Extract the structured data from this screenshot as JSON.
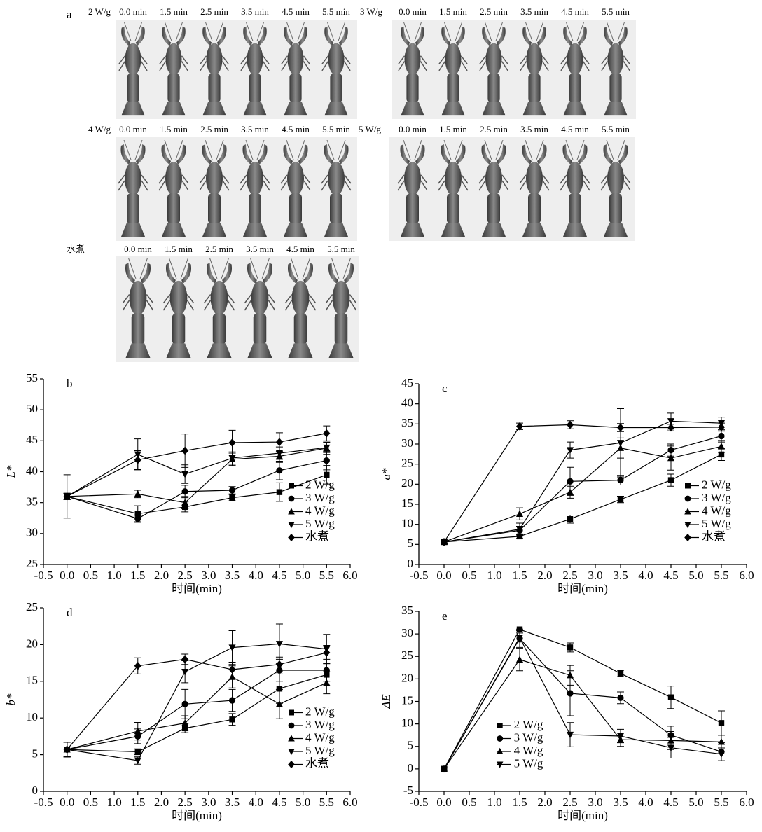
{
  "photo_panel": {
    "label": "a",
    "groups": [
      {
        "name": "2 W/g",
        "times": [
          "0.0 min",
          "1.5 min",
          "2.5 min",
          "3.5 min",
          "4.5 min",
          "5.5 min"
        ]
      },
      {
        "name": "3 W/g",
        "times": [
          "0.0 min",
          "1.5 min",
          "2.5 min",
          "3.5 min",
          "4.5 min",
          "5.5 min"
        ]
      },
      {
        "name": "4 W/g",
        "times": [
          "0.0 min",
          "1.5 min",
          "2.5 min",
          "3.5 min",
          "4.5 min",
          "5.5 min"
        ]
      },
      {
        "name": "5 W/g",
        "times": [
          "0.0 min",
          "1.5 min",
          "2.5 min",
          "3.5 min",
          "4.5 min",
          "5.5 min"
        ]
      },
      {
        "name": "水煮",
        "times": [
          "0.0 min",
          "1.5 min",
          "2.5 min",
          "3.5 min",
          "4.5 min",
          "5.5 min"
        ]
      }
    ]
  },
  "chart_data": [
    {
      "type": "line",
      "label": "b",
      "ylabel": "L*",
      "xlabel": "时间(min)",
      "legend": "lower right",
      "x": [
        0,
        1.5,
        2.5,
        3.5,
        4.5,
        5.5
      ],
      "xlim": [
        -0.5,
        6.0
      ],
      "xticks": [
        -0.5,
        {
          "value": 0,
          "label": "0.0"
        },
        0.5,
        {
          "value": 1,
          "label": "1.0"
        },
        1.5,
        {
          "value": 2,
          "label": "2.0"
        },
        2.5,
        {
          "value": 3,
          "label": "3.0"
        },
        3.5,
        {
          "value": 4,
          "label": "4.0"
        },
        4.5,
        {
          "value": 5,
          "label": "5.0"
        },
        5.5,
        {
          "value": 6,
          "label": "6.0"
        }
      ],
      "ylim": [
        25,
        55
      ],
      "yticks": [
        25,
        30,
        35,
        40,
        45,
        50,
        55
      ],
      "series": [
        {
          "name": "2 W/g",
          "marker": "square",
          "color": "#000",
          "values": [
            36,
            33.2,
            34.3,
            35.8,
            36.7,
            39.5
          ],
          "errors": [
            0.5,
            1.3,
            0.8,
            0.5,
            1.5,
            1.5
          ]
        },
        {
          "name": "3 W/g",
          "marker": "circle",
          "color": "#000",
          "values": [
            36,
            32.4,
            36.8,
            37.0,
            40.2,
            41.8
          ],
          "errors": [
            0.5,
            0.6,
            1.0,
            0.6,
            1.5,
            1.5
          ]
        },
        {
          "name": "4 W/g",
          "marker": "triangle",
          "color": "#000",
          "values": [
            36,
            36.4,
            35.0,
            42.0,
            42.5,
            43.8
          ],
          "errors": [
            0.5,
            0.6,
            1.0,
            1.0,
            1.0,
            1.0
          ]
        },
        {
          "name": "5 W/g",
          "marker": "triangle-down",
          "color": "#000",
          "values": [
            36,
            42.8,
            39.6,
            42.2,
            43.0,
            43.9
          ],
          "errors": [
            0.5,
            2.5,
            1.5,
            1.0,
            1.0,
            0.8
          ]
        },
        {
          "name": "水煮",
          "marker": "diamond",
          "color": "#000",
          "values": [
            36,
            41.9,
            43.4,
            44.7,
            44.8,
            46.2
          ],
          "errors": [
            3.5,
            1.5,
            2.7,
            2.0,
            1.5,
            1.2
          ]
        }
      ]
    },
    {
      "type": "line",
      "label": "c",
      "ylabel": "a*",
      "xlabel": "时间(min)",
      "legend": "lower right",
      "x": [
        0,
        1.5,
        2.5,
        3.5,
        4.5,
        5.5
      ],
      "xlim": [
        -0.5,
        6.0
      ],
      "xticks": [
        -0.5,
        {
          "value": 0,
          "label": "0.0"
        },
        0.5,
        {
          "value": 1,
          "label": "1.0"
        },
        1.5,
        {
          "value": 2,
          "label": "2.0"
        },
        2.5,
        {
          "value": 3,
          "label": "3.0"
        },
        3.5,
        {
          "value": 4,
          "label": "4.0"
        },
        4.5,
        {
          "value": 5,
          "label": "5.0"
        },
        5.5,
        {
          "value": 6,
          "label": "6.0"
        }
      ],
      "ylim": [
        0,
        45
      ],
      "yticks": [
        0,
        5,
        10,
        15,
        20,
        25,
        30,
        35,
        40,
        45
      ],
      "series": [
        {
          "name": "2 W/g",
          "marker": "square",
          "color": "#000",
          "values": [
            5.6,
            7.0,
            11.3,
            16.2,
            21.0,
            27.4
          ],
          "errors": [
            0.5,
            0.5,
            1.0,
            0.8,
            1.5,
            1.5
          ]
        },
        {
          "name": "3 W/g",
          "marker": "circle",
          "color": "#000",
          "values": [
            5.6,
            8.5,
            20.7,
            21.0,
            28.5,
            32.0
          ],
          "errors": [
            0.5,
            1.0,
            3.5,
            1.2,
            1.5,
            1.5
          ]
        },
        {
          "name": "4 W/g",
          "marker": "triangle",
          "color": "#000",
          "values": [
            5.6,
            12.6,
            18.0,
            29.0,
            26.5,
            29.4
          ],
          "errors": [
            0.5,
            1.5,
            1.5,
            2.5,
            3.0,
            1.5
          ]
        },
        {
          "name": "5 W/g",
          "marker": "triangle-down",
          "color": "#000",
          "values": [
            5.6,
            8.8,
            28.5,
            30.3,
            35.7,
            35.2
          ],
          "errors": [
            0.5,
            1.5,
            2.0,
            8.5,
            2.0,
            1.5
          ]
        },
        {
          "name": "水煮",
          "marker": "diamond",
          "color": "#000",
          "values": [
            5.6,
            34.4,
            34.8,
            34.1,
            34.1,
            34.2
          ],
          "errors": [
            0.5,
            0.8,
            1.0,
            1.0,
            0.8,
            1.0
          ]
        }
      ]
    },
    {
      "type": "line",
      "label": "d",
      "ylabel": "b*",
      "xlabel": "时间(min)",
      "legend": "lower right",
      "x": [
        0,
        1.5,
        2.5,
        3.5,
        4.5,
        5.5
      ],
      "xlim": [
        -0.5,
        6.0
      ],
      "xticks": [
        -0.5,
        {
          "value": 0,
          "label": "0.0"
        },
        0.5,
        {
          "value": 1,
          "label": "1.0"
        },
        1.5,
        {
          "value": 2,
          "label": "2.0"
        },
        2.5,
        {
          "value": 3,
          "label": "3.0"
        },
        3.5,
        {
          "value": 4,
          "label": "4.0"
        },
        4.5,
        {
          "value": 5,
          "label": "5.0"
        },
        5.5,
        {
          "value": 6,
          "label": "6.0"
        }
      ],
      "ylim": [
        0,
        25
      ],
      "yticks": [
        0,
        5,
        10,
        15,
        20,
        25
      ],
      "series": [
        {
          "name": "2 W/g",
          "marker": "square",
          "color": "#000",
          "values": [
            5.7,
            5.4,
            8.6,
            9.8,
            14.0,
            15.9
          ],
          "errors": [
            1.0,
            0.4,
            0.6,
            0.8,
            2.0,
            1.5
          ]
        },
        {
          "name": "3 W/g",
          "marker": "circle",
          "color": "#000",
          "values": [
            5.7,
            7.5,
            11.9,
            12.4,
            16.5,
            16.5
          ],
          "errors": [
            1.0,
            1.0,
            2.0,
            1.5,
            1.5,
            1.5
          ]
        },
        {
          "name": "4 W/g",
          "marker": "triangle",
          "color": "#000",
          "values": [
            5.7,
            8.2,
            9.3,
            15.6,
            11.9,
            14.8
          ],
          "errors": [
            1.0,
            1.2,
            1.0,
            1.5,
            2.0,
            1.5
          ]
        },
        {
          "name": "5 W/g",
          "marker": "triangle-down",
          "color": "#000",
          "values": [
            5.7,
            4.2,
            16.3,
            19.6,
            20.1,
            19.4
          ],
          "errors": [
            1.0,
            0.5,
            1.5,
            2.3,
            2.7,
            2.0
          ]
        },
        {
          "name": "水煮",
          "marker": "diamond",
          "color": "#000",
          "values": [
            5.7,
            17.1,
            18.0,
            16.6,
            17.3,
            18.9
          ],
          "errors": [
            1.0,
            1.1,
            0.7,
            1.0,
            1.0,
            1.0
          ]
        }
      ]
    },
    {
      "type": "line",
      "label": "e",
      "ylabel": "ΔE",
      "xlabel": "时间(min)",
      "legend": "lower left",
      "x": [
        0,
        1.5,
        2.5,
        3.5,
        4.5,
        5.5
      ],
      "xlim": [
        -0.5,
        6.0
      ],
      "xticks": [
        -0.5,
        {
          "value": 0,
          "label": "0.0"
        },
        0.5,
        {
          "value": 1,
          "label": "1.0"
        },
        1.5,
        {
          "value": 2,
          "label": "2.0"
        },
        2.5,
        {
          "value": 3,
          "label": "3.0"
        },
        3.5,
        {
          "value": 4,
          "label": "4.0"
        },
        4.5,
        {
          "value": 5,
          "label": "5.0"
        },
        5.5,
        {
          "value": 6,
          "label": "6.0"
        }
      ],
      "ylim": [
        -5,
        35
      ],
      "yticks": [
        -5,
        0,
        5,
        10,
        15,
        20,
        25,
        30,
        35
      ],
      "series": [
        {
          "name": "2 W/g",
          "marker": "square",
          "color": "#000",
          "values": [
            0,
            31.0,
            27.0,
            21.2,
            15.9,
            10.2
          ],
          "errors": [
            0.3,
            0.3,
            1.0,
            0.7,
            2.5,
            2.7
          ]
        },
        {
          "name": "3 W/g",
          "marker": "circle",
          "color": "#000",
          "values": [
            0,
            29.0,
            16.8,
            15.8,
            7.5,
            3.8
          ],
          "errors": [
            0.3,
            2.0,
            5.0,
            1.3,
            2.0,
            2.0
          ]
        },
        {
          "name": "4 W/g",
          "marker": "triangle",
          "color": "#000",
          "values": [
            0,
            24.3,
            20.8,
            6.5,
            6.3,
            6.0
          ],
          "errors": [
            0.3,
            2.5,
            2.2,
            1.5,
            2.0,
            1.5
          ]
        },
        {
          "name": "5 W/g",
          "marker": "triangle-down",
          "color": "#000",
          "values": [
            0,
            29.2,
            7.6,
            7.3,
            4.7,
            3.3
          ],
          "errors": [
            0.3,
            1.0,
            2.7,
            1.5,
            2.3,
            1.5
          ]
        }
      ]
    }
  ]
}
